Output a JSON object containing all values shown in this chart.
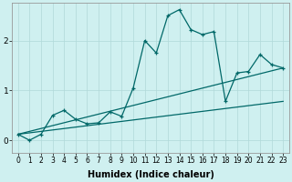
{
  "xlabel": "Humidex (Indice chaleur)",
  "bg_color": "#cff0f0",
  "grid_color": "#b0d8d8",
  "line_color": "#006868",
  "x_ticks": [
    0,
    1,
    2,
    3,
    4,
    5,
    6,
    7,
    8,
    9,
    10,
    11,
    12,
    13,
    14,
    15,
    16,
    17,
    18,
    19,
    20,
    21,
    22,
    23
  ],
  "xlim": [
    -0.5,
    23.5
  ],
  "ylim": [
    -0.25,
    2.75
  ],
  "y_ticks": [
    0,
    1,
    2
  ],
  "series1_x": [
    0,
    1,
    2,
    3,
    4,
    5,
    6,
    7,
    8,
    9,
    10,
    11,
    12,
    13,
    14,
    15,
    16,
    17,
    18,
    19,
    20,
    21,
    22,
    23
  ],
  "series1_y": [
    0.12,
    0.0,
    0.12,
    0.5,
    0.6,
    0.42,
    0.33,
    0.35,
    0.57,
    0.48,
    1.05,
    2.0,
    1.75,
    2.5,
    2.62,
    2.22,
    2.12,
    2.18,
    0.78,
    1.35,
    1.38,
    1.72,
    1.52,
    1.45
  ],
  "series2_x": [
    0,
    23
  ],
  "series2_y": [
    0.12,
    0.78
  ],
  "series3_x": [
    0,
    23
  ],
  "series3_y": [
    0.12,
    1.45
  ],
  "tick_fontsize": 5.5,
  "xlabel_fontsize": 7
}
